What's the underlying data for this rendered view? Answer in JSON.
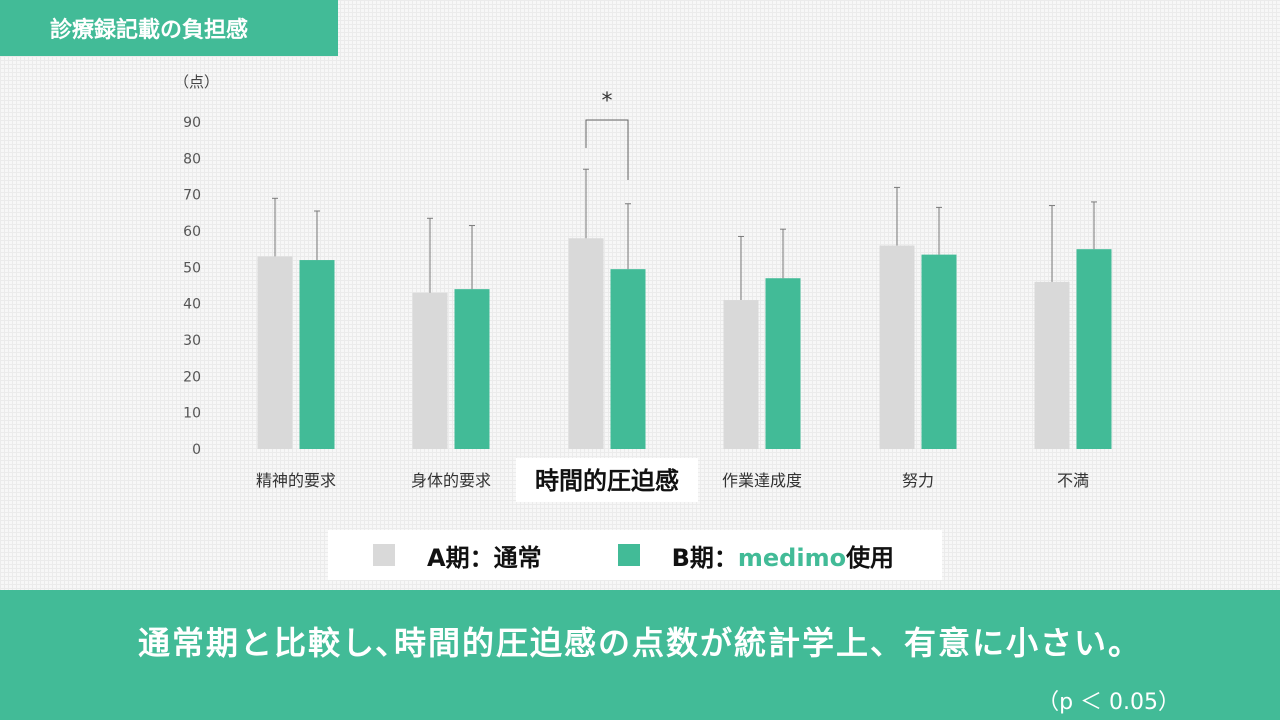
{
  "header": {
    "title": "診療録記載の負担感"
  },
  "chart_data": {
    "type": "bar",
    "ylabel": "（点）",
    "ylim": [
      0,
      90
    ],
    "yticks": [
      0,
      10,
      20,
      30,
      40,
      50,
      60,
      70,
      80,
      90
    ],
    "categories": [
      "精神的要求",
      "身体的要求",
      "時間的圧迫感",
      "作業達成度",
      "努力",
      "不満"
    ],
    "highlighted_category": "時間的圧迫感",
    "series": [
      {
        "name": "A期：通常",
        "color": "#d9d9d9",
        "values": [
          53,
          43,
          58,
          41,
          56,
          46
        ],
        "error_upper": [
          69,
          63.5,
          77,
          58.5,
          72,
          67
        ]
      },
      {
        "name": "B期：medimo使用",
        "color": "#42bb97",
        "values": [
          52,
          44,
          49.5,
          47,
          53.5,
          55
        ],
        "error_upper": [
          65.5,
          61.5,
          67.5,
          60.5,
          66.5,
          68
        ]
      }
    ],
    "significance": {
      "category": "時間的圧迫感",
      "marker": "*"
    }
  },
  "legend": {
    "a_label": "A期：通常",
    "b_prefix": "B期：",
    "b_accent": "medimo",
    "b_suffix": "使用"
  },
  "banner": {
    "text": "通常期と比較し､時間的圧迫感の点数が統計学上、有意に小さい。",
    "note": "（p ＜ 0.05）"
  }
}
